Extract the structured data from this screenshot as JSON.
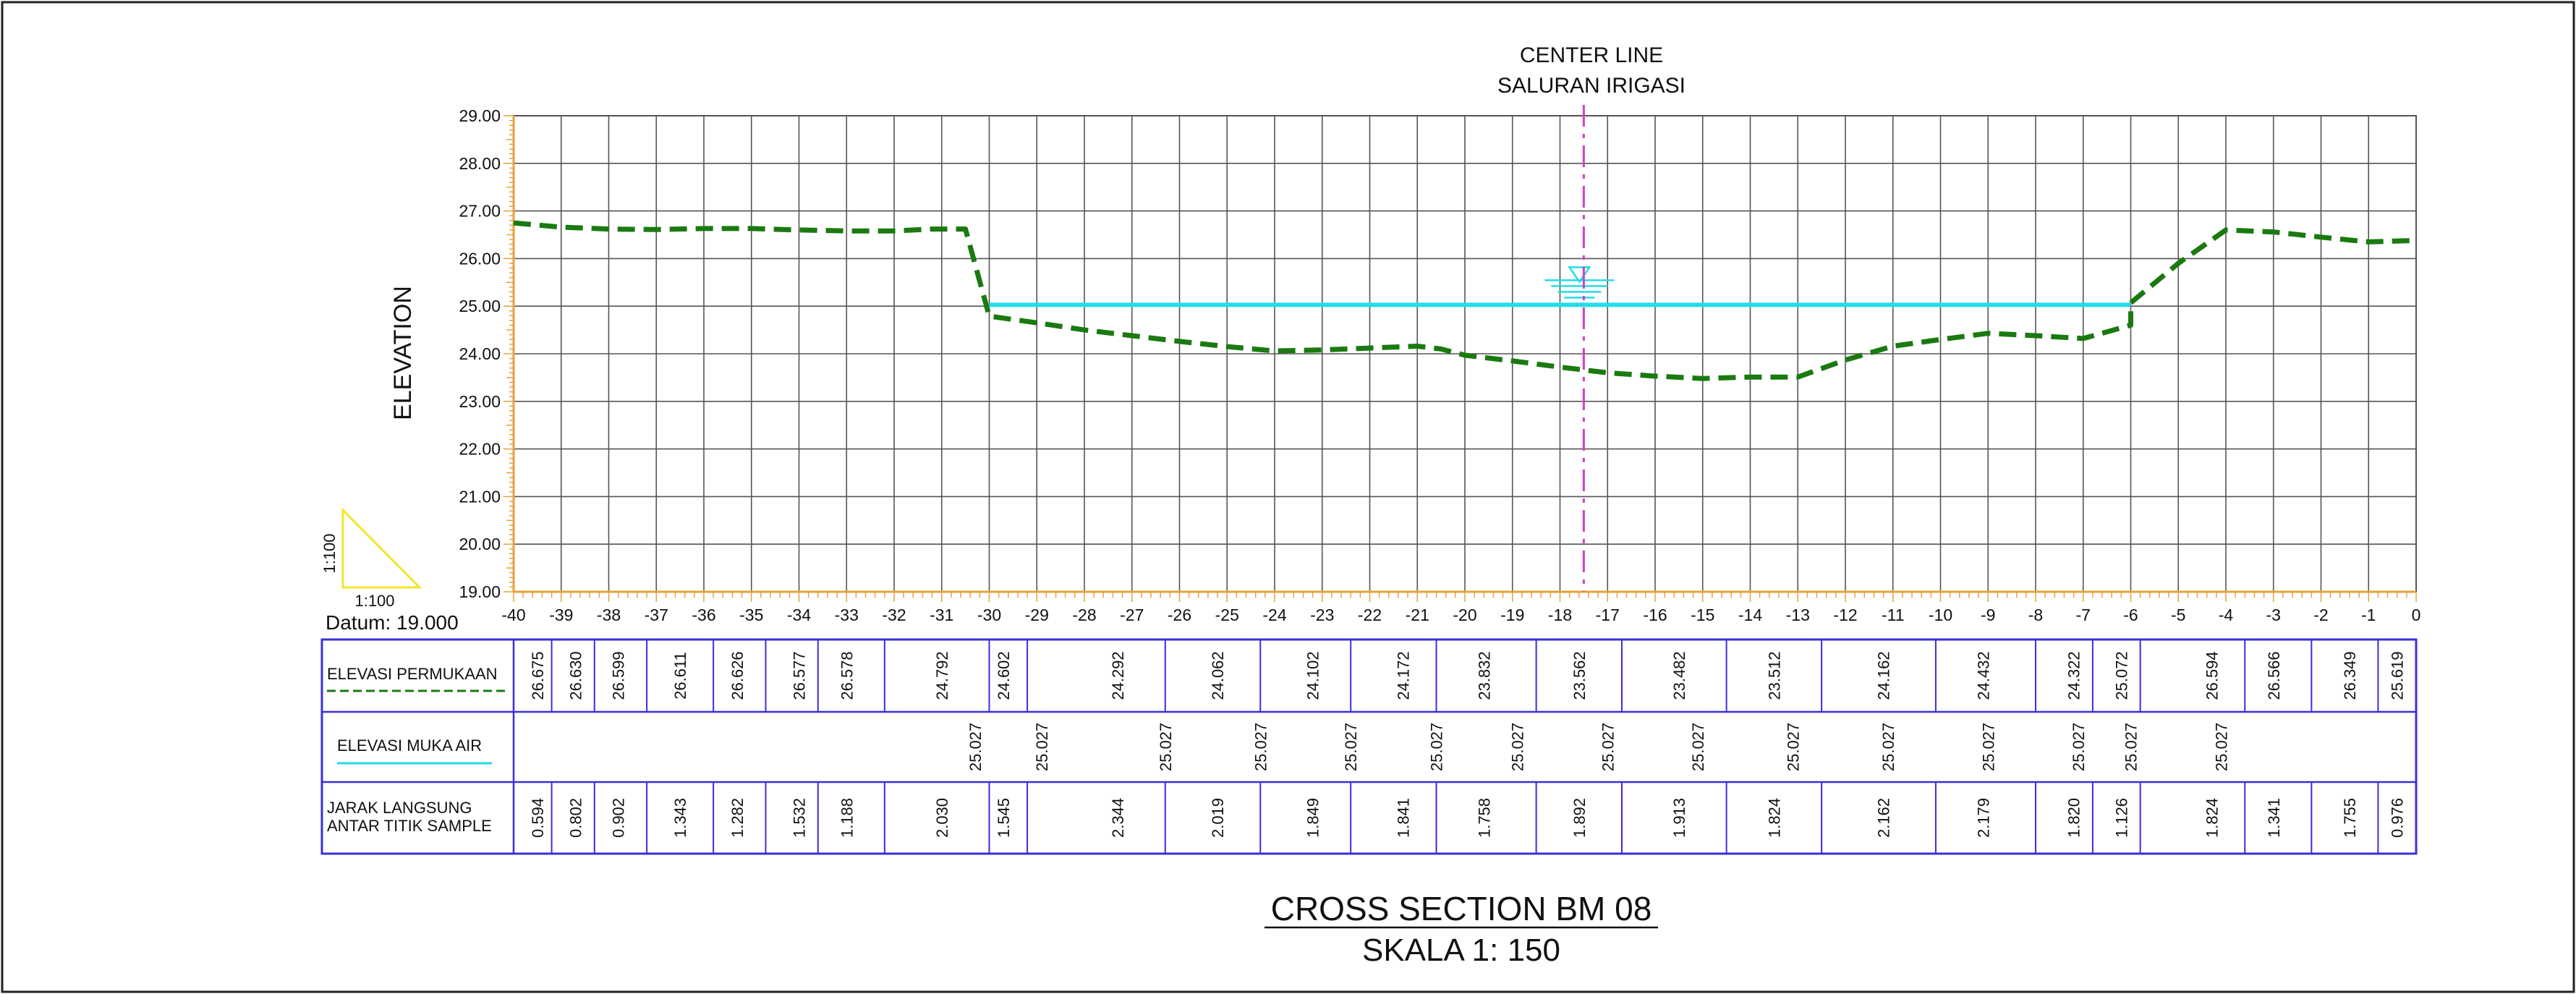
{
  "title": {
    "center_line_1": "CENTER LINE",
    "center_line_2": "SALURAN IRIGASI",
    "section": "CROSS SECTION BM 08",
    "scale": "SKALA 1: 150"
  },
  "scale_triangle": {
    "vertical": "1:100",
    "horizontal": "1:100"
  },
  "datum": "Datum: 19.000",
  "chart_data": {
    "type": "line",
    "ylabel": "ELEVATION",
    "xlim": [
      -40,
      0
    ],
    "ylim": [
      19,
      29
    ],
    "y_ticks": [
      "19.00",
      "20.00",
      "21.00",
      "22.00",
      "23.00",
      "24.00",
      "25.00",
      "26.00",
      "27.00",
      "28.00",
      "29.00"
    ],
    "x_ticks": [
      "-40",
      "-39",
      "-38",
      "-37",
      "-36",
      "-35",
      "-34",
      "-33",
      "-32",
      "-31",
      "-30",
      "-29",
      "-28",
      "-27",
      "-26",
      "-25",
      "-24",
      "-23",
      "-22",
      "-21",
      "-20",
      "-19",
      "-18",
      "-17",
      "-16",
      "-15",
      "-14",
      "-13",
      "-12",
      "-11",
      "-10",
      "-9",
      "-8",
      "-7",
      "-6",
      "-5",
      "-4",
      "-3",
      "-2",
      "-1",
      "0"
    ],
    "center_line_x": -17.5,
    "water_level": {
      "value": 25.027,
      "x_start": -30,
      "x_end": -6
    },
    "ground_profile": [
      [
        -40,
        26.75
      ],
      [
        -39,
        26.66
      ],
      [
        -38,
        26.62
      ],
      [
        -37,
        26.61
      ],
      [
        -36,
        26.63
      ],
      [
        -35,
        26.63
      ],
      [
        -34,
        26.6
      ],
      [
        -33,
        26.58
      ],
      [
        -32,
        26.58
      ],
      [
        -31.2,
        26.62
      ],
      [
        -30.5,
        26.62
      ],
      [
        -30,
        24.79
      ],
      [
        -29,
        24.65
      ],
      [
        -28,
        24.5
      ],
      [
        -27,
        24.38
      ],
      [
        -26,
        24.26
      ],
      [
        -25,
        24.15
      ],
      [
        -24,
        24.06
      ],
      [
        -23,
        24.08
      ],
      [
        -22,
        24.12
      ],
      [
        -21,
        24.16
      ],
      [
        -20.5,
        24.1
      ],
      [
        -20,
        23.97
      ],
      [
        -19,
        23.85
      ],
      [
        -18,
        23.72
      ],
      [
        -17,
        23.6
      ],
      [
        -16,
        23.53
      ],
      [
        -15,
        23.48
      ],
      [
        -14,
        23.51
      ],
      [
        -13,
        23.51
      ],
      [
        -12,
        23.87
      ],
      [
        -11,
        24.16
      ],
      [
        -10,
        24.3
      ],
      [
        -9,
        24.43
      ],
      [
        -8,
        24.38
      ],
      [
        -7,
        24.32
      ],
      [
        -6,
        24.6
      ],
      [
        -6,
        25.07
      ],
      [
        -5,
        25.9
      ],
      [
        -4,
        26.6
      ],
      [
        -3,
        26.56
      ],
      [
        -2,
        26.45
      ],
      [
        -1,
        26.35
      ],
      [
        0,
        26.38
      ]
    ]
  },
  "table": {
    "row_labels": {
      "surface": "ELEVASI PERMUKAAN",
      "water": "ELEVASI MUKA AIR",
      "distance_1": "JARAK LANGSUNG",
      "distance_2": "ANTAR TITIK SAMPLE"
    },
    "surface_values": [
      "26.675",
      "26.630",
      "26.599",
      "26.611",
      "26.626",
      "26.577",
      "26.578",
      "24.792",
      "24.602",
      "24.292",
      "24.062",
      "24.102",
      "24.172",
      "23.832",
      "23.562",
      "23.482",
      "23.512",
      "24.162",
      "24.432",
      "24.322",
      "25.072",
      "26.594",
      "26.566",
      "26.349",
      "25.619"
    ],
    "water_values": [
      "25.027",
      "25.027",
      "25.027",
      "25.027",
      "25.027",
      "25.027",
      "25.027",
      "25.027",
      "25.027",
      "25.027",
      "25.027",
      "25.027",
      "25.027",
      "25.027",
      "25.027"
    ],
    "distance_values": [
      "0.594",
      "0.802",
      "0.902",
      "1.343",
      "1.282",
      "1.532",
      "1.188",
      "2.030",
      "1.545",
      "2.344",
      "2.019",
      "1.849",
      "1.841",
      "1.758",
      "1.892",
      "1.913",
      "1.824",
      "2.162",
      "2.179",
      "1.820",
      "1.126",
      "1.824",
      "1.341",
      "1.755",
      "0.976"
    ]
  },
  "colors": {
    "ground": "#1a7a10",
    "water": "#22dde6",
    "center_line": "#d63cc8",
    "table_border": "#3a2fd6",
    "grid": "#555555",
    "ticks": "#e7a23a"
  }
}
